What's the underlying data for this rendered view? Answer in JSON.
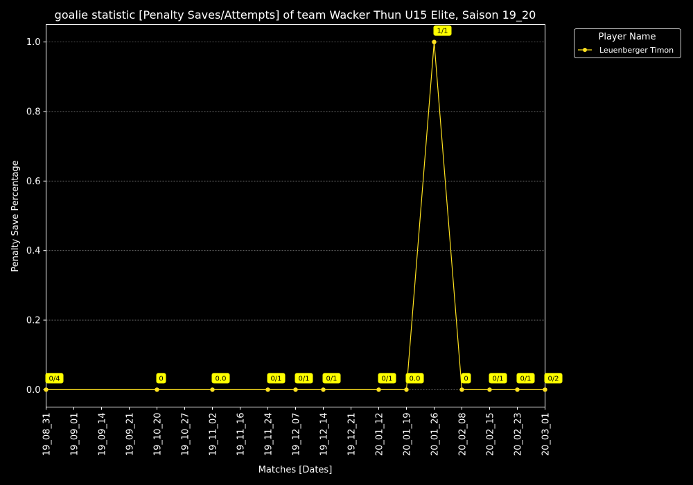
{
  "chart_data": {
    "type": "line",
    "title": "goalie statistic [Penalty Saves/Attempts] of team Wacker Thun U15 Elite, Saison 19_20",
    "xlabel": "Matches [Dates]",
    "ylabel": "Penalty Save Percentage",
    "ylim": [
      -0.05,
      1.05
    ],
    "yticks": [
      "0.0",
      "0.2",
      "0.4",
      "0.6",
      "0.8",
      "1.0"
    ],
    "grid": true,
    "legend": {
      "title": "Player Name",
      "position": "outside-top-right"
    },
    "x": [
      "19_08_31",
      "19_09_01",
      "19_09_14",
      "19_09_21",
      "19_10_20",
      "19_10_27",
      "19_11_02",
      "19_11_16",
      "19_11_24",
      "19_12_07",
      "19_12_14",
      "19_12_21",
      "20_01_12",
      "20_01_19",
      "20_01_26",
      "20_02_08",
      "20_02_15",
      "20_02_23",
      "20_03_01"
    ],
    "series": [
      {
        "name": "Leuenberger Timon",
        "color": "#ffe21f",
        "points": [
          {
            "x": "19_08_31",
            "y": 0,
            "label": "0/4"
          },
          {
            "x": "19_10_20",
            "y": 0,
            "label": "0"
          },
          {
            "x": "19_11_02",
            "y": 0,
            "label": "0.0"
          },
          {
            "x": "19_11_24",
            "y": 0,
            "label": "0/1"
          },
          {
            "x": "19_12_07",
            "y": 0,
            "label": "0/1"
          },
          {
            "x": "19_12_14",
            "y": 0,
            "label": "0/1"
          },
          {
            "x": "20_01_12",
            "y": 0,
            "label": "0/1"
          },
          {
            "x": "20_01_19",
            "y": 0,
            "label": "0.0"
          },
          {
            "x": "20_01_26",
            "y": 1,
            "label": "1/1"
          },
          {
            "x": "20_02_08",
            "y": 0,
            "label": "0"
          },
          {
            "x": "20_02_15",
            "y": 0,
            "label": "0/1"
          },
          {
            "x": "20_02_23",
            "y": 0,
            "label": "0/1"
          },
          {
            "x": "20_03_01",
            "y": 0,
            "label": "0/2"
          }
        ]
      }
    ]
  }
}
